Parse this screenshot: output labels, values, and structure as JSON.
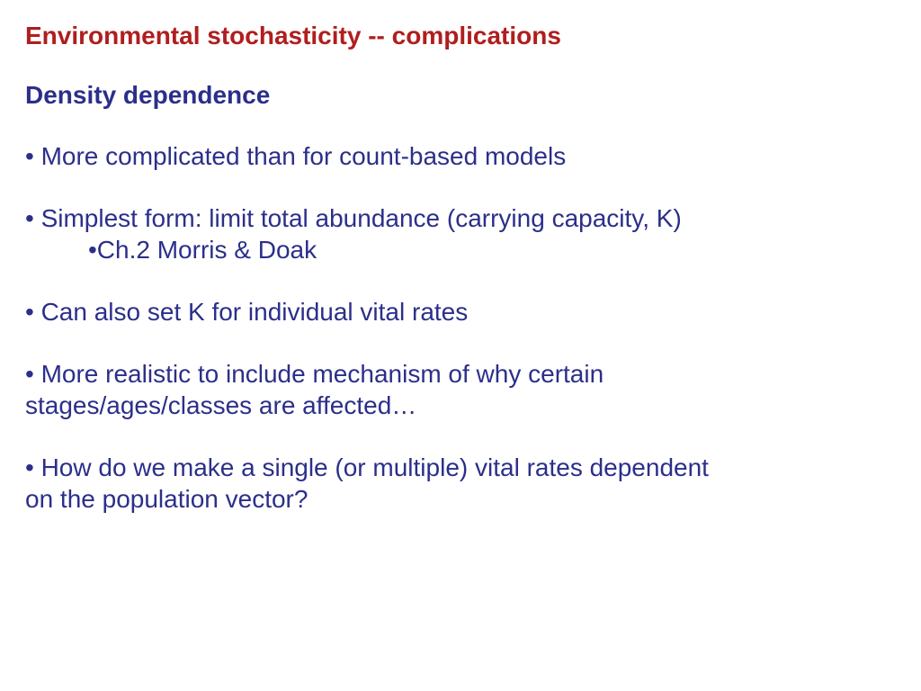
{
  "colors": {
    "title": "#b01e1e",
    "body": "#2b2f8a",
    "background": "#ffffff"
  },
  "typography": {
    "title_fontsize": 28,
    "body_fontsize": 28,
    "font_family": "Arial"
  },
  "title": "Environmental stochasticity -- complications",
  "subtitle": "Density dependence",
  "bullets": {
    "b1": "• More complicated than for count-based models",
    "b2_line1": "• Simplest form: limit total abundance (carrying capacity, K)",
    "b2_sub": "•Ch.2 Morris & Doak",
    "b3": "• Can also set K for individual vital rates",
    "b4_line1": "• More realistic to include mechanism of why certain",
    "b4_line2": "stages/ages/classes are affected…",
    "b5_line1": "• How do we make a single (or multiple) vital rates dependent",
    "b5_line2": "on the population vector?"
  }
}
